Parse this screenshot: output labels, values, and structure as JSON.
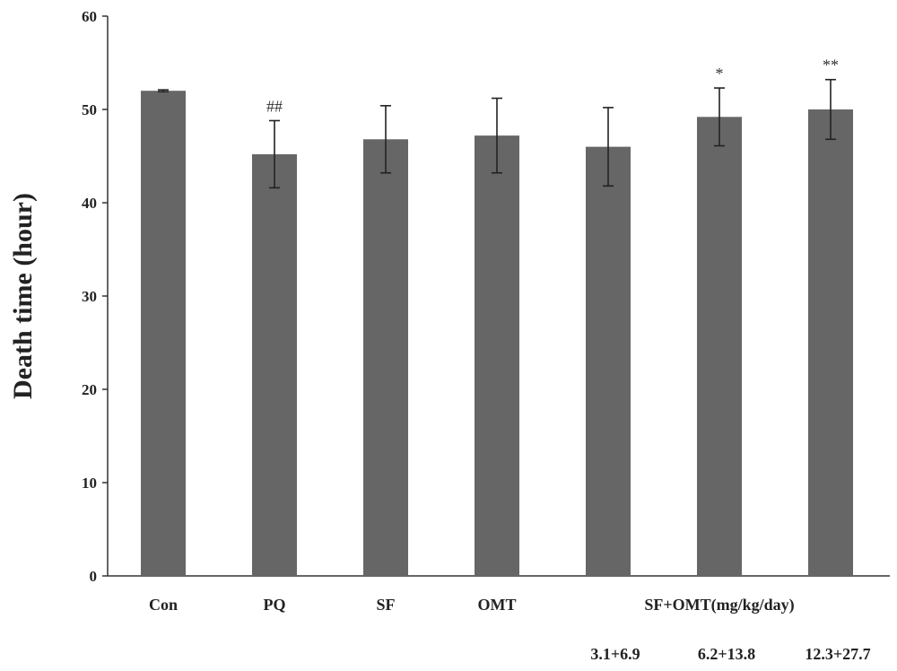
{
  "chart_data": {
    "type": "bar",
    "title": "",
    "xlabel": "",
    "ylabel": "Death time (hour)",
    "ylim": [
      0,
      60
    ],
    "yticks": [
      0,
      10,
      20,
      30,
      40,
      50,
      60
    ],
    "grid": false,
    "legend": "none",
    "bar_color": "#666666",
    "categories": [
      "Con",
      "PQ",
      "SF",
      "OMT",
      "",
      "",
      ""
    ],
    "group_label": "SF+OMT(mg/kg/day)",
    "dose_labels": [
      "",
      "",
      "",
      "",
      "3.1+6.9",
      "6.2+13.8",
      "12.3+27.7"
    ],
    "values": [
      52.0,
      45.2,
      46.8,
      47.2,
      46.0,
      49.2,
      50.0
    ],
    "errors": [
      0.1,
      3.6,
      3.6,
      4.0,
      4.2,
      3.1,
      3.2
    ],
    "annotations": [
      "",
      "##",
      "",
      "",
      "",
      "*",
      "**"
    ]
  }
}
